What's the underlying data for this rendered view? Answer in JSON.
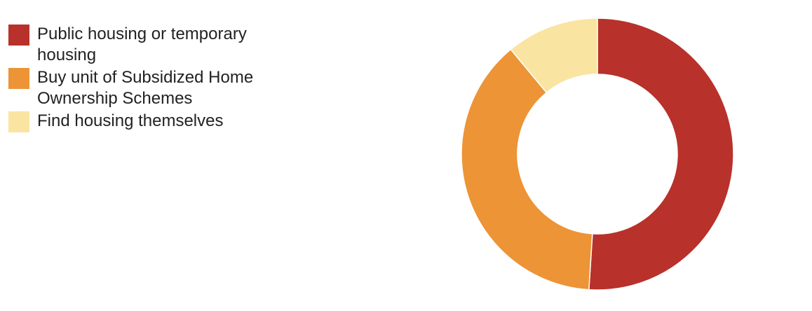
{
  "chart_data": {
    "type": "pie",
    "variant": "donut",
    "title": "",
    "categories": [
      "Public housing or temporary housing",
      "Buy unit of Subsidized Home Ownership Schemes",
      "Find housing themselves"
    ],
    "values": [
      51,
      38,
      11
    ],
    "colors": [
      "#b8312b",
      "#ec9436",
      "#fae4a1"
    ],
    "legend_position": "left",
    "start_angle_deg": 0,
    "direction": "clockwise",
    "data_labels": false
  }
}
